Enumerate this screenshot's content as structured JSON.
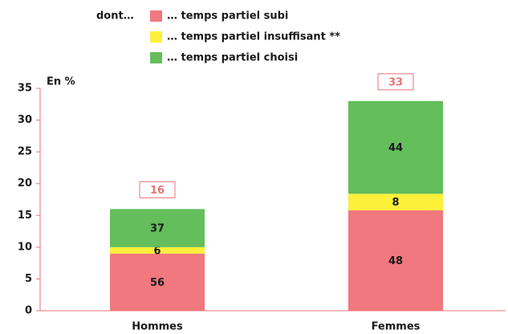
{
  "chart_data": {
    "type": "stacked_bar",
    "legend_title": "dont…",
    "y_label": "En %",
    "categories": [
      "Hommes",
      "Femmes"
    ],
    "totals": [
      16,
      33
    ],
    "series": [
      {
        "name": "… temps partiel subi",
        "color": "#f0787e",
        "values": [
          9,
          15.8
        ],
        "share_labels": [
          56,
          48
        ]
      },
      {
        "name": "… temps partiel insuffisant **",
        "color": "#fdf03a",
        "values": [
          1,
          2.6
        ],
        "share_labels": [
          6,
          8
        ]
      },
      {
        "name": "… temps partiel choisi",
        "color": "#63be5b",
        "values": [
          6,
          14.6
        ],
        "share_labels": [
          37,
          44
        ]
      }
    ],
    "ylim": [
      0,
      35
    ],
    "yticks": [
      0,
      5,
      10,
      15,
      20,
      25,
      30,
      35
    ],
    "grid": false
  }
}
